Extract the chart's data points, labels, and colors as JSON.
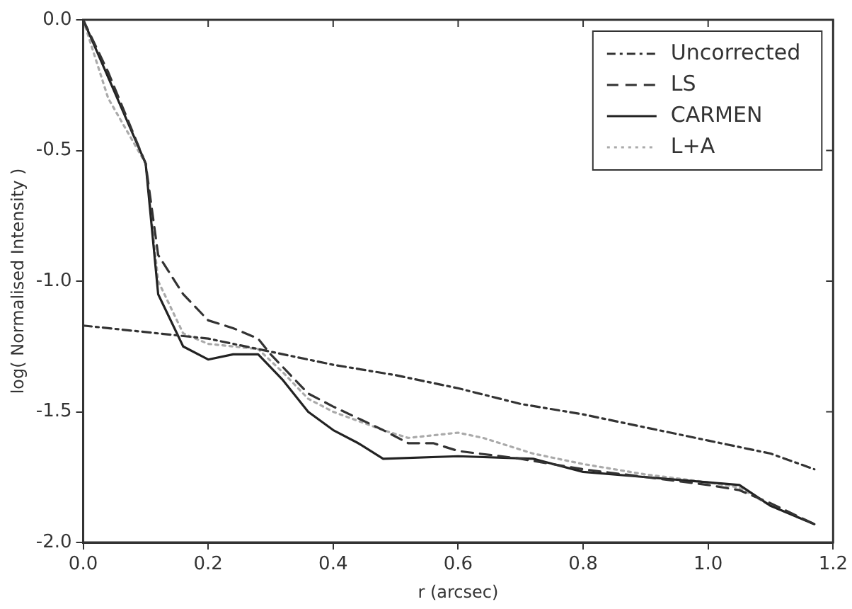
{
  "chart_data": {
    "type": "line",
    "xlabel": "r (arcsec)",
    "ylabel": "log( Normalised Intensity )",
    "xlim": [
      0,
      1.2
    ],
    "ylim": [
      -2,
      0
    ],
    "xticks": [
      {
        "value": 0,
        "label": "0.0"
      },
      {
        "value": 0.2,
        "label": "0.2"
      },
      {
        "value": 0.4,
        "label": "0.4"
      },
      {
        "value": 0.6,
        "label": "0.6"
      },
      {
        "value": 0.8,
        "label": "0.8"
      },
      {
        "value": 1,
        "label": "1.0"
      },
      {
        "value": 1.2,
        "label": "1.2"
      }
    ],
    "yticks": [
      {
        "value": -2,
        "label": "-2.0"
      },
      {
        "value": -1.5,
        "label": "-1.5"
      },
      {
        "value": -1,
        "label": "-1.0"
      },
      {
        "value": -0.5,
        "label": "-0.5"
      },
      {
        "value": 0,
        "label": "0.0"
      }
    ],
    "grid": false,
    "legend": "top right",
    "marker": "none",
    "series": [
      {
        "name": "Uncorrected",
        "color": "#333333",
        "line_style": "dashdot",
        "x": [
          0,
          0.2,
          0.3,
          0.4,
          0.5,
          0.6,
          0.7,
          0.8,
          0.9,
          1.0,
          1.1,
          1.17
        ],
        "values": [
          -1.17,
          -1.22,
          -1.27,
          -1.32,
          -1.36,
          -1.41,
          -1.47,
          -1.51,
          -1.56,
          -1.61,
          -1.66,
          -1.72
        ]
      },
      {
        "name": "LS",
        "color": "#333333",
        "line_style": "dashed",
        "x": [
          0,
          0.04,
          0.1,
          0.12,
          0.16,
          0.2,
          0.24,
          0.28,
          0.3,
          0.36,
          0.4,
          0.48,
          0.52,
          0.56,
          0.6,
          0.7,
          0.8,
          0.9,
          1.0,
          1.05,
          1.1,
          1.17
        ],
        "values": [
          0,
          -0.2,
          -0.55,
          -0.9,
          -1.05,
          -1.15,
          -1.18,
          -1.22,
          -1.28,
          -1.43,
          -1.48,
          -1.57,
          -1.62,
          -1.62,
          -1.65,
          -1.68,
          -1.72,
          -1.75,
          -1.78,
          -1.8,
          -1.85,
          -1.93
        ]
      },
      {
        "name": "CARMEN",
        "color": "#222222",
        "line_style": "solid",
        "x": [
          0,
          0.1,
          0.12,
          0.16,
          0.2,
          0.24,
          0.28,
          0.32,
          0.36,
          0.4,
          0.44,
          0.48,
          0.6,
          0.72,
          0.8,
          0.9,
          1.0,
          1.05,
          1.1,
          1.17
        ],
        "values": [
          0,
          -0.55,
          -1.05,
          -1.25,
          -1.3,
          -1.28,
          -1.28,
          -1.38,
          -1.5,
          -1.57,
          -1.62,
          -1.68,
          -1.67,
          -1.68,
          -1.73,
          -1.75,
          -1.77,
          -1.78,
          -1.86,
          -1.93
        ]
      },
      {
        "name": "L+A",
        "color": "#aaaaaa",
        "line_style": "dotted",
        "x": [
          0,
          0.04,
          0.1,
          0.12,
          0.16,
          0.2,
          0.24,
          0.28,
          0.32,
          0.36,
          0.4,
          0.48,
          0.52,
          0.6,
          0.64,
          0.72,
          0.8,
          0.9,
          1.0,
          1.05,
          1.1,
          1.17
        ],
        "values": [
          0,
          -0.3,
          -0.55,
          -1.0,
          -1.2,
          -1.24,
          -1.25,
          -1.26,
          -1.35,
          -1.45,
          -1.5,
          -1.57,
          -1.6,
          -1.58,
          -1.6,
          -1.66,
          -1.7,
          -1.74,
          -1.77,
          -1.79,
          -1.86,
          -1.93
        ]
      }
    ]
  }
}
